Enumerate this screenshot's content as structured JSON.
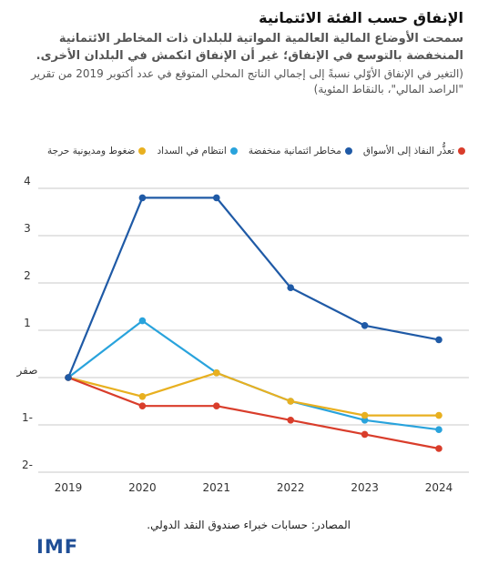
{
  "header": {
    "title": "الإنفاق حسب الفئة الائتمانية",
    "subtitle": "سمحت الأوضاع المالية العالمية المواتية للبلدان ذات المخاطر الائتمانية المنخفضة بالتوسع في الإنفاق؛ غير أن الإنفاق انكمش في البلدان الأخرى.",
    "note": "(التغير في الإنفاق الأوّلي نسبةً إلى إجمالي الناتج المحلي المتوقع في عدد أكتوبر 2019 من تقرير \"الراصد المالي\"، بالنقاط المئوية)"
  },
  "source": "المصادر: حسابات خبراء صندوق النقد الدولي.",
  "logo": "IMF",
  "chart_data": {
    "type": "line",
    "x": [
      "2019",
      "2020",
      "2021",
      "2022",
      "2023",
      "2024"
    ],
    "y_ticks": [
      {
        "value": 4,
        "label": "4"
      },
      {
        "value": 3,
        "label": "3"
      },
      {
        "value": 2,
        "label": "2"
      },
      {
        "value": 1,
        "label": "1"
      },
      {
        "value": 0,
        "label": "صفر"
      },
      {
        "value": -1,
        "label": "1-"
      },
      {
        "value": -2,
        "label": "2-"
      }
    ],
    "ylim": [
      -2,
      4
    ],
    "grid": "horizontal",
    "legend_position": "top",
    "series": [
      {
        "name": "مخاطر ائتمانية منخفضة",
        "color": "#29a3dc",
        "values": [
          0,
          1.2,
          0.1,
          -0.5,
          -0.9,
          -1.1
        ]
      },
      {
        "name": "ضغوط ومديونية حرجة",
        "color": "#e8b020",
        "values": [
          0,
          -0.4,
          0.1,
          -0.5,
          -0.8,
          -0.8
        ]
      },
      {
        "name": "تعذُّر النفاذ إلى الأسواق",
        "color": "#d93d2b",
        "values": [
          0,
          -0.6,
          -0.6,
          -0.9,
          -1.2,
          -1.5
        ]
      },
      {
        "name": "انتظام في السداد",
        "color": "#1f5aa6",
        "values": [
          0,
          3.8,
          3.8,
          1.9,
          1.1,
          0.8
        ]
      }
    ],
    "legend_order": [
      3,
      0,
      1,
      2
    ],
    "legend_labels_override": [
      "تعذُّر النفاذ إلى الأسواق",
      "مخاطر ائتمانية منخفضة",
      "انتظام في السداد",
      "ضغوط ومديونية حرجة"
    ],
    "legend_colors": [
      "#d93d2b",
      "#1f5aa6",
      "#29a3dc",
      "#e8b020"
    ]
  }
}
